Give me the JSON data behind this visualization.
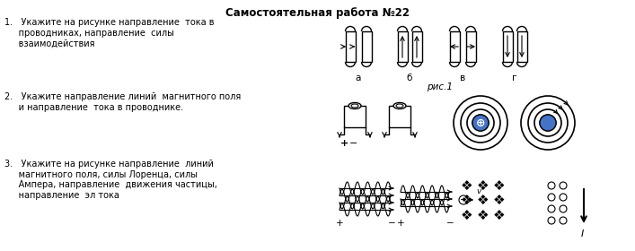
{
  "title": "Самостоятельная работа №22",
  "q1_text": "1.   Укажите на рисунке направление  тока в\n     проводниках, направление  силы\n     взаимодействия",
  "q2_text": "2.   Укажите направление линий  магнитного поля\n     и направление  тока в проводнике.",
  "q3_text": "3.   Укажите на рисунке направление  линий\n     магнитного поля, силы Лоренца, силы\n     Ампера, направление  движения частицы,\n     направление  эл тока",
  "ris1_label": "рис.1",
  "bg_color": "#ffffff",
  "text_color": "#000000",
  "blue_color": "#4472C4"
}
